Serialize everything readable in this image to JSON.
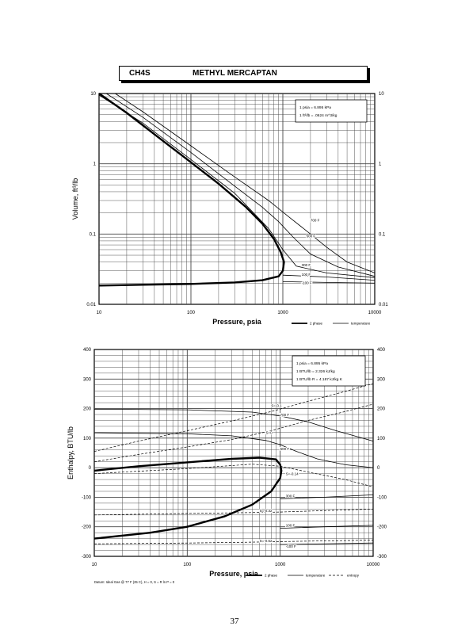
{
  "header": {
    "formula": "CH4S",
    "name": "METHYL MERCAPTAN"
  },
  "page_number": "37",
  "colors": {
    "ink": "#000000",
    "grid": "#444444",
    "bg": "#ffffff"
  },
  "chart_data": [
    {
      "id": "volume",
      "type": "line",
      "xscale": "log",
      "yscale": "log",
      "xlim": [
        10,
        10000
      ],
      "ylim": [
        0.01,
        10
      ],
      "xlabel": "Pressure,  psia",
      "ylabel": "Volume, ft^3/lb",
      "x_ticks": [
        "10",
        "100",
        "1000",
        "10000"
      ],
      "y_ticks": [
        "0.01",
        "0.1",
        "1",
        "10"
      ],
      "y_ticks_right": [
        "0.01",
        "0.1",
        "1",
        "10"
      ],
      "conversion_box": [
        "1 psia = 6.895 kPa",
        "1 ft^3/lb = .0624 m^3/kg"
      ],
      "legend": [
        "2 phase",
        "temperature"
      ],
      "series": [
        {
          "name": "2 phase",
          "style": "heavy",
          "points": [
            [
              10,
              10
            ],
            [
              20,
              5.3
            ],
            [
              50,
              2.1
            ],
            [
              100,
              1.05
            ],
            [
              200,
              0.52
            ],
            [
              400,
              0.24
            ],
            [
              600,
              0.14
            ],
            [
              800,
              0.085
            ],
            [
              950,
              0.055
            ],
            [
              1030,
              0.04
            ],
            [
              1000,
              0.03
            ],
            [
              900,
              0.025
            ],
            [
              600,
              0.022
            ],
            [
              300,
              0.0205
            ],
            [
              100,
              0.0195
            ],
            [
              30,
              0.019
            ],
            [
              10,
              0.0185
            ]
          ]
        },
        {
          "name": "700 F",
          "style": "temperature",
          "points": [
            [
              15,
              10
            ],
            [
              30,
              5.5
            ],
            [
              100,
              1.8
            ],
            [
              300,
              0.65
            ],
            [
              700,
              0.3
            ],
            [
              1200,
              0.17
            ],
            [
              2000,
              0.1
            ],
            [
              3000,
              0.065
            ],
            [
              5000,
              0.04
            ],
            [
              10000,
              0.028
            ]
          ]
        },
        {
          "name": "500 F",
          "style": "temperature",
          "points": [
            [
              12,
              10
            ],
            [
              30,
              4.6
            ],
            [
              100,
              1.45
            ],
            [
              300,
              0.48
            ],
            [
              600,
              0.24
            ],
            [
              900,
              0.15
            ],
            [
              1300,
              0.09
            ],
            [
              2000,
              0.052
            ],
            [
              4000,
              0.034
            ],
            [
              10000,
              0.025
            ]
          ]
        },
        {
          "name": "300 F",
          "style": "temperature",
          "points": [
            [
              10,
              9.5
            ],
            [
              30,
              3.8
            ],
            [
              100,
              1.15
            ],
            [
              300,
              0.38
            ],
            [
              700,
              0.12
            ],
            [
              1000,
              0.06
            ],
            [
              1400,
              0.035
            ],
            [
              3000,
              0.028
            ],
            [
              10000,
              0.024
            ]
          ]
        },
        {
          "name": "100 F",
          "style": "temperature",
          "points": [
            [
              1000,
              0.026
            ],
            [
              3000,
              0.0245
            ],
            [
              10000,
              0.022
            ]
          ]
        },
        {
          "name": "-100 F",
          "style": "temperature",
          "points": [
            [
              1000,
              0.021
            ],
            [
              3000,
              0.0205
            ],
            [
              10000,
              0.02
            ]
          ]
        }
      ],
      "curve_labels": [
        {
          "text": "700 F",
          "x": 2000,
          "y": 0.15
        },
        {
          "text": "500 F",
          "x": 1800,
          "y": 0.09
        },
        {
          "text": "300 F",
          "x": 1600,
          "y": 0.035
        },
        {
          "text": "100 F",
          "x": 1600,
          "y": 0.0255
        },
        {
          "text": "-100 F",
          "x": 1600,
          "y": 0.0195
        }
      ]
    },
    {
      "id": "enthalpy",
      "type": "line",
      "xscale": "log",
      "yscale": "linear",
      "xlim": [
        10,
        10000
      ],
      "ylim": [
        -300,
        400
      ],
      "xlabel": "Pressure,  psia",
      "ylabel": "Enthalpy, BTU/lb",
      "x_ticks": [
        "10",
        "100",
        "1000",
        "10000"
      ],
      "y_ticks": [
        "-300",
        "-200",
        "-100",
        "0",
        "100",
        "200",
        "300",
        "400"
      ],
      "y_ticks_right": [
        "-300",
        "-200",
        "-100",
        "0",
        "100",
        "200",
        "300",
        "400"
      ],
      "conversion_box": [
        "1 psia = 6.895 kPa",
        "1 BTU/lb = 2.326 kJ/kg",
        "1 BTU/lb R = 4.187 kJ/kg K"
      ],
      "legend": [
        "2 phase",
        "temperature",
        "entropy"
      ],
      "footnote": "Datum: Ideal Gas @ 77 F (25 C), H = 0, S = R ln P = 0",
      "series": [
        {
          "name": "2 phase",
          "style": "heavy",
          "points": [
            [
              10,
              -10
            ],
            [
              30,
              5
            ],
            [
              100,
              18
            ],
            [
              300,
              30
            ],
            [
              600,
              34
            ],
            [
              900,
              28
            ],
            [
              1000,
              10
            ],
            [
              1030,
              -10
            ],
            [
              1000,
              -35
            ],
            [
              800,
              -80
            ],
            [
              500,
              -125
            ],
            [
              250,
              -165
            ],
            [
              100,
              -200
            ],
            [
              40,
              -220
            ],
            [
              10,
              -240
            ]
          ]
        },
        {
          "name": "700 F",
          "style": "temperature",
          "points": [
            [
              10,
              198
            ],
            [
              100,
              196
            ],
            [
              500,
              188
            ],
            [
              1000,
              175
            ],
            [
              2000,
              155
            ],
            [
              4000,
              125
            ],
            [
              10000,
              90
            ]
          ]
        },
        {
          "name": "500 F",
          "style": "temperature",
          "points": [
            [
              10,
              118
            ],
            [
              100,
              115
            ],
            [
              300,
              108
            ],
            [
              700,
              92
            ],
            [
              1000,
              78
            ],
            [
              1500,
              55
            ],
            [
              2500,
              30
            ],
            [
              5000,
              10
            ],
            [
              10000,
              0
            ]
          ]
        },
        {
          "name": "300 F",
          "style": "temperature",
          "points": [
            [
              1000,
              -105
            ],
            [
              3000,
              -100
            ],
            [
              10000,
              -92
            ]
          ]
        },
        {
          "name": "100 F",
          "style": "temperature",
          "points": [
            [
              1000,
              -205
            ],
            [
              3000,
              -200
            ],
            [
              10000,
              -195
            ]
          ]
        },
        {
          "name": "-100 F",
          "style": "temperature",
          "points": [
            [
              1000,
              -260
            ],
            [
              3000,
              -258
            ],
            [
              10000,
              -255
            ]
          ]
        },
        {
          "name": "S=-0.1",
          "style": "entropy",
          "points": [
            [
              10,
              55
            ],
            [
              30,
              90
            ],
            [
              100,
              125
            ],
            [
              300,
              158
            ],
            [
              800,
              190
            ],
            [
              2000,
              225
            ],
            [
              5000,
              258
            ],
            [
              10000,
              285
            ]
          ]
        },
        {
          "name": "S=0",
          "style": "entropy",
          "points": [
            [
              10,
              20
            ],
            [
              30,
              45
            ],
            [
              100,
              70
            ],
            [
              300,
              95
            ],
            [
              800,
              125
            ],
            [
              2000,
              160
            ],
            [
              5000,
              190
            ],
            [
              10000,
              215
            ]
          ]
        },
        {
          "name": "S=-0.14",
          "style": "entropy",
          "points": [
            [
              10,
              -20
            ],
            [
              100,
              -3
            ],
            [
              500,
              12
            ],
            [
              1000,
              5
            ],
            [
              2000,
              -15
            ],
            [
              5000,
              -40
            ],
            [
              10000,
              -65
            ]
          ]
        },
        {
          "name": "S=-0.32",
          "style": "entropy",
          "points": [
            [
              10,
              -160
            ],
            [
              100,
              -155
            ],
            [
              500,
              -152
            ],
            [
              1000,
              -150
            ],
            [
              10000,
              -140
            ]
          ]
        },
        {
          "name": "S=-0.52",
          "style": "entropy",
          "points": [
            [
              10,
              -258
            ],
            [
              100,
              -255
            ],
            [
              500,
              -252
            ],
            [
              1000,
              -250
            ],
            [
              10000,
              -245
            ]
          ]
        }
      ],
      "curve_labels": [
        {
          "text": "S=-0.1",
          "x": 800,
          "y": 205
        },
        {
          "text": "700 F",
          "x": 1000,
          "y": 175
        },
        {
          "text": "S=0",
          "x": 700,
          "y": 115
        },
        {
          "text": "500 F",
          "x": 1000,
          "y": 60
        },
        {
          "text": "S=-0.14",
          "x": 1150,
          "y": -25
        },
        {
          "text": "300 F",
          "x": 1150,
          "y": -100
        },
        {
          "text": "S=-0.32",
          "x": 600,
          "y": -150
        },
        {
          "text": "100 F",
          "x": 1150,
          "y": -200
        },
        {
          "text": "S=-0.52",
          "x": 600,
          "y": -252
        },
        {
          "text": "-100 F",
          "x": 1150,
          "y": -270
        }
      ]
    }
  ]
}
